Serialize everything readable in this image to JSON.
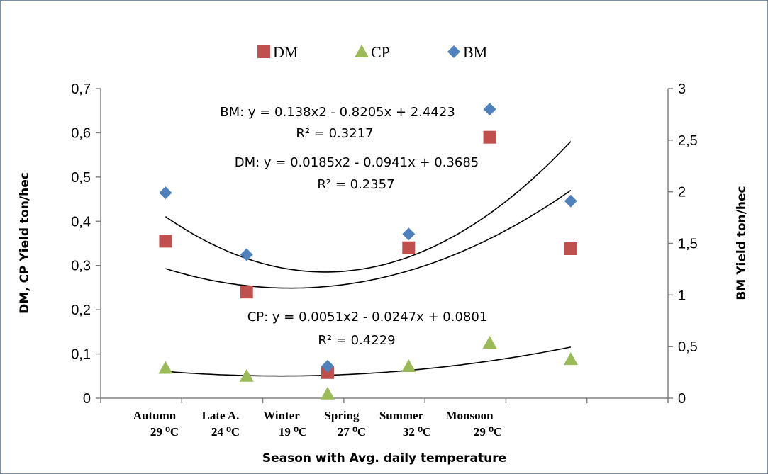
{
  "chart_data": {
    "type": "scatter",
    "legend": {
      "position": "top",
      "items": [
        {
          "label": "DM",
          "marker": "square",
          "color": "#c0504d"
        },
        {
          "label": "CP",
          "marker": "triangle",
          "color": "#9bbb59"
        },
        {
          "label": "BM",
          "marker": "diamond",
          "color": "#4f81bd"
        }
      ]
    },
    "x": [
      1,
      2,
      3,
      4,
      5,
      6
    ],
    "category_labels": [
      [
        "Autumn",
        "29 ⁰C"
      ],
      [
        "Late A.",
        "24 ⁰C"
      ],
      [
        "Winter",
        "19 ⁰C"
      ],
      [
        "Spring",
        "27 ⁰C"
      ],
      [
        "Summer",
        "32 ⁰C"
      ],
      [
        "Monsoon",
        "29 ⁰C"
      ]
    ],
    "xlabel": "Season with Avg. daily temperature",
    "ylabel_left": "DM, CP Yield ton/hec",
    "ylabel_right": "BM Yield ton/hec",
    "ylim_left": [
      0,
      0.7
    ],
    "ylim_right": [
      0,
      3
    ],
    "yticks_left": [
      "0",
      "0,1",
      "0,2",
      "0,3",
      "0,4",
      "0,5",
      "0,6",
      "0,7"
    ],
    "yticks_right": [
      "0",
      "0,5",
      "1",
      "1,5",
      "2",
      "2,5",
      "3"
    ],
    "series": [
      {
        "name": "DM",
        "axis": "left",
        "color": "#c0504d",
        "marker": "square",
        "values": [
          0.355,
          0.24,
          0.058,
          0.34,
          0.59,
          0.338
        ],
        "trend": {
          "a": 0.0185,
          "b": -0.0941,
          "c": 0.3685
        }
      },
      {
        "name": "CP",
        "axis": "left",
        "color": "#9bbb59",
        "marker": "triangle",
        "values": [
          0.068,
          0.05,
          0.01,
          0.072,
          0.125,
          0.088
        ],
        "trend": {
          "a": 0.0051,
          "b": -0.0247,
          "c": 0.0801
        }
      },
      {
        "name": "BM",
        "axis": "right",
        "color": "#4f81bd",
        "marker": "diamond",
        "values": [
          1.99,
          1.39,
          0.31,
          1.59,
          2.8,
          1.91
        ],
        "trend": {
          "a": 0.138,
          "b": -0.8205,
          "c": 2.4423
        }
      }
    ],
    "annotations": [
      {
        "id": "bm",
        "eq": "BM: y = 0.138x2 - 0.8205x + 2.4423",
        "r2": "R² = 0.3217"
      },
      {
        "id": "dm",
        "eq": "DM: y = 0.0185x2 - 0.0941x + 0.3685",
        "r2": "R² = 0.2357"
      },
      {
        "id": "cp",
        "eq": "CP: y = 0.0051x2 - 0.0247x + 0.0801",
        "r2": "R² = 0.4229"
      }
    ],
    "grid": false
  }
}
